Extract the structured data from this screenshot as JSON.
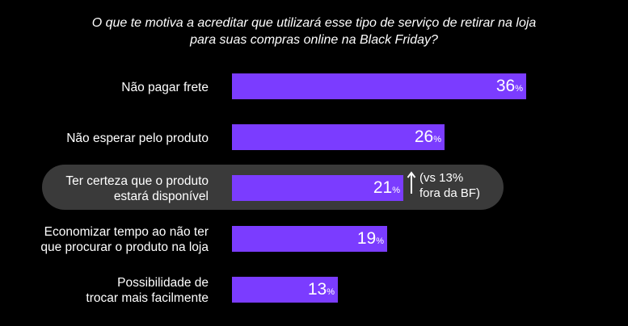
{
  "chart_data": {
    "type": "bar",
    "orientation": "horizontal",
    "title_lines": [
      "O que te motiva a acreditar que utilizará esse tipo de serviço de retirar na loja",
      "para suas compras online na Black Friday?"
    ],
    "unit": "%",
    "xlim": [
      0,
      36
    ],
    "bar_color": "#7b3cff",
    "highlight_color": "#3a3a3a",
    "categories": [
      {
        "lines": [
          "Não pagar frete"
        ],
        "value": 36,
        "label": "36"
      },
      {
        "lines": [
          "Não esperar pelo produto"
        ],
        "value": 26,
        "label": "26"
      },
      {
        "lines": [
          "Ter certeza que o produto",
          "estará disponível"
        ],
        "value": 21,
        "label": "21",
        "highlight": true
      },
      {
        "lines": [
          "Economizar tempo ao não ter",
          "que procurar o produto na loja"
        ],
        "value": 19,
        "label": "19"
      },
      {
        "lines": [
          "Possibilidade de",
          "trocar mais facilmente"
        ],
        "value": 13,
        "label": "13"
      }
    ],
    "annotation": {
      "category_index": 2,
      "icon": "arrow-up-icon",
      "lines": [
        "(vs 13%",
        "fora da BF)"
      ]
    }
  }
}
